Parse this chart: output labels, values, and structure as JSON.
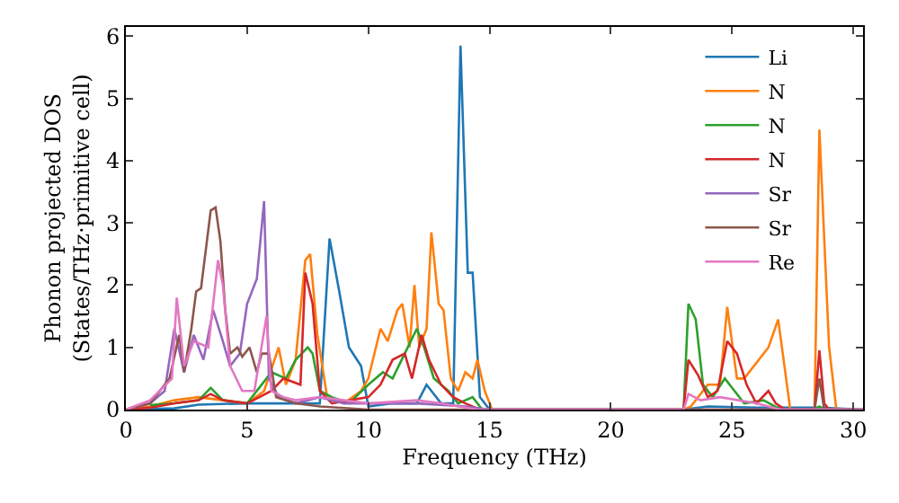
{
  "chart_data": {
    "type": "line",
    "xlabel": "Frequency (THz)",
    "ylabel": "Phonon projected DOS\n(States/THz·primitive cell)",
    "xlim": [
      0,
      30.4
    ],
    "ylim": [
      0,
      6.15
    ],
    "xticks": [
      0,
      5,
      10,
      15,
      20,
      25,
      30
    ],
    "yticks": [
      0,
      1,
      2,
      3,
      4,
      5,
      6
    ],
    "grid": false,
    "legend": "top right",
    "marker": "none",
    "line_style": "solid",
    "series": [
      {
        "name": "Li",
        "color": "#1f77b4",
        "x": [
          0,
          2,
          3,
          5,
          7,
          8,
          8.4,
          8.8,
          9.2,
          9.7,
          10,
          11,
          12,
          12.4,
          13,
          13.5,
          13.8,
          14.1,
          14.3,
          14.6,
          15,
          23,
          24,
          26,
          28.6,
          30.4
        ],
        "values": [
          0,
          0.02,
          0.08,
          0.1,
          0.1,
          0.1,
          2.75,
          1.9,
          1,
          0.7,
          0.05,
          0.1,
          0.1,
          0.4,
          0.1,
          0.1,
          5.85,
          2.2,
          2.2,
          0.2,
          0,
          0,
          0.05,
          0.03,
          0.03,
          0
        ]
      },
      {
        "name": "N",
        "color": "#ff7f0e",
        "x": [
          0,
          1,
          2,
          3,
          4,
          5,
          5.7,
          6.3,
          6.6,
          7,
          7.4,
          7.6,
          7.9,
          8.3,
          9,
          9.7,
          10,
          10.5,
          10.8,
          11.2,
          11.4,
          11.7,
          11.9,
          12.1,
          12.4,
          12.6,
          12.9,
          13.1,
          13.4,
          13.7,
          14,
          14.3,
          14.5,
          14.8,
          15.1,
          23,
          23.3,
          24,
          24.5,
          24.8,
          25.2,
          25.5,
          26.5,
          26.9,
          27.4,
          28.4,
          28.6,
          29,
          29.3,
          30.4
        ],
        "values": [
          0,
          0.05,
          0.15,
          0.2,
          0.15,
          0.1,
          0.3,
          1,
          0.4,
          0.8,
          2.4,
          2.5,
          1.2,
          0.2,
          0.1,
          0.3,
          0.5,
          1.3,
          1.1,
          1.6,
          1.7,
          1,
          2,
          1,
          1.3,
          2.85,
          1.7,
          1.6,
          0.5,
          0.3,
          0.6,
          0.5,
          0.8,
          0.3,
          0,
          0,
          0.05,
          0.4,
          0.4,
          1.65,
          0.5,
          0.5,
          1,
          1.45,
          0,
          0,
          4.5,
          1,
          0,
          0
        ]
      },
      {
        "name": "N",
        "color": "#2ca02c",
        "x": [
          1,
          2,
          3,
          3.5,
          4,
          5,
          6,
          6.6,
          7,
          7.5,
          7.7,
          8,
          8.5,
          9.2,
          10,
          10.6,
          11,
          11.5,
          12,
          12.3,
          12.7,
          13.3,
          13.7,
          14.3,
          14.7,
          23,
          23.2,
          23.5,
          23.8,
          24.2,
          24.7,
          25,
          25.5,
          26.3,
          27,
          28.4,
          28.6,
          28.8,
          30.4
        ],
        "values": [
          0.07,
          0.1,
          0.15,
          0.35,
          0.15,
          0.1,
          0.6,
          0.5,
          0.8,
          1,
          0.9,
          0.3,
          0.2,
          0.1,
          0.4,
          0.6,
          0.5,
          0.9,
          1.3,
          1,
          0.5,
          0.3,
          0.1,
          0.2,
          0,
          0,
          1.7,
          1.45,
          0.4,
          0.2,
          0.5,
          0.35,
          0.1,
          0.15,
          0,
          0,
          0.05,
          0,
          0
        ]
      },
      {
        "name": "N",
        "color": "#d62728",
        "x": [
          0,
          1,
          2,
          3,
          3.5,
          4,
          5,
          6,
          6.5,
          7.2,
          7.4,
          7.7,
          8,
          8.5,
          10,
          10.5,
          11,
          11.5,
          11.8,
          12.2,
          12.5,
          13,
          13.5,
          14,
          14.6,
          23,
          23.2,
          23.6,
          24,
          24.4,
          24.8,
          25.2,
          25.6,
          26,
          26.5,
          26.8,
          27.2,
          28.4,
          28.6,
          28.8,
          29,
          30.4
        ],
        "values": [
          0,
          0.03,
          0.1,
          0.15,
          0.25,
          0.15,
          0.1,
          0.3,
          0.5,
          0.4,
          2.2,
          1.7,
          0.3,
          0.1,
          0.2,
          0.4,
          0.8,
          0.9,
          0.5,
          1.2,
          0.8,
          0.4,
          0.2,
          0.1,
          0,
          0,
          0.8,
          0.55,
          0.2,
          0.3,
          1.1,
          0.9,
          0.4,
          0.1,
          0.3,
          0.1,
          0,
          0,
          0.95,
          0.1,
          0,
          0
        ]
      },
      {
        "name": "Sr",
        "color": "#9467bd",
        "x": [
          0,
          1,
          1.6,
          2,
          2.4,
          2.8,
          3.2,
          3.6,
          4,
          4.3,
          4.7,
          5,
          5.4,
          5.7,
          5.9,
          6.3,
          7,
          8,
          9,
          12,
          14,
          15,
          30.4
        ],
        "values": [
          0,
          0.1,
          0.3,
          1.3,
          0.6,
          1.2,
          0.8,
          1.6,
          1.1,
          0.7,
          0.9,
          1.7,
          2.1,
          3.35,
          0.5,
          0.2,
          0.1,
          0.2,
          0.1,
          0.1,
          0.05,
          0,
          0
        ]
      },
      {
        "name": "Sr",
        "color": "#8c564b",
        "x": [
          0,
          1,
          1.8,
          2.2,
          2.4,
          2.7,
          2.9,
          3.1,
          3.5,
          3.7,
          3.9,
          4.1,
          4.3,
          4.6,
          4.8,
          5.1,
          5.4,
          5.6,
          5.9,
          6.2,
          7,
          8,
          10,
          28.4,
          28.6,
          28.8,
          30.4
        ],
        "values": [
          0,
          0.1,
          0.5,
          1.2,
          0.6,
          1.3,
          1.9,
          1.95,
          3.2,
          3.25,
          2.7,
          1.6,
          0.9,
          1,
          0.85,
          1,
          0.6,
          0.9,
          0.9,
          0.2,
          0.1,
          0.05,
          0,
          0,
          0.5,
          0,
          0
        ]
      },
      {
        "name": "Re",
        "color": "#e377c2",
        "x": [
          0,
          1,
          1.9,
          2.1,
          2.4,
          2.8,
          3.4,
          3.8,
          4,
          4.3,
          4.8,
          5.3,
          5.8,
          6,
          6.5,
          7,
          8,
          10,
          12,
          13,
          14.5,
          23,
          23.2,
          23.7,
          24.5,
          26,
          27,
          30.4
        ],
        "values": [
          0,
          0.15,
          0.5,
          1.8,
          0.7,
          1.1,
          1,
          2.4,
          2,
          0.7,
          0.3,
          0.3,
          1.5,
          0.3,
          0.2,
          0.15,
          0.2,
          0.1,
          0.15,
          0.1,
          0,
          0,
          0.25,
          0.15,
          0.2,
          0.1,
          0,
          0
        ]
      }
    ]
  }
}
